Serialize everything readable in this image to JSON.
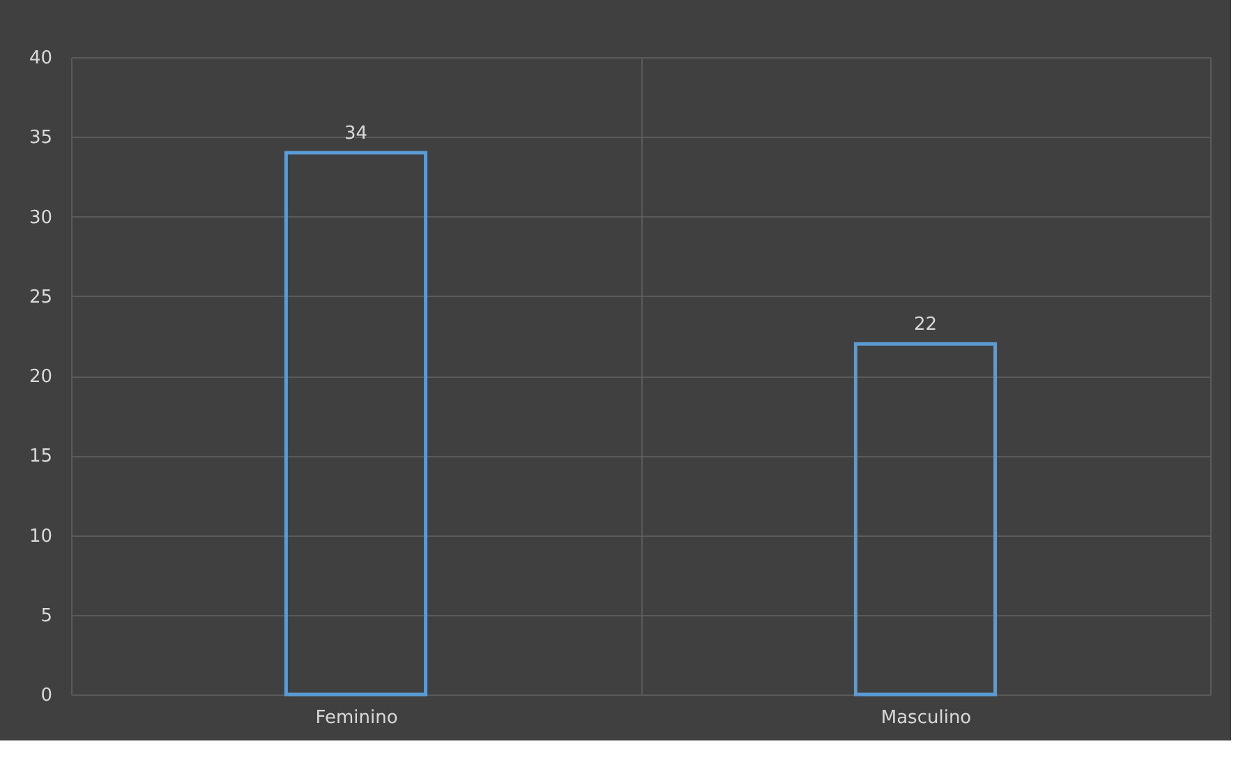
{
  "chart_data": {
    "type": "bar",
    "categories": [
      "Feminino",
      "Masculino"
    ],
    "values": [
      34,
      22
    ],
    "color": "#5b9bd5",
    "ylim": [
      0,
      40
    ],
    "yticks": [
      0,
      5,
      10,
      15,
      20,
      25,
      30,
      35,
      40
    ],
    "grid": true,
    "data_labels": true
  }
}
